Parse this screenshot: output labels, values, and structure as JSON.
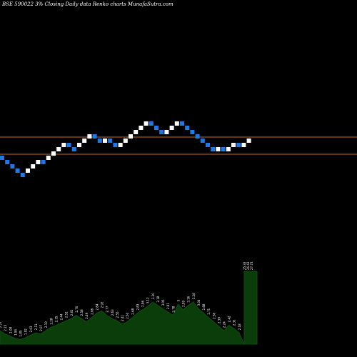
{
  "chart_data": {
    "type": "renko",
    "title": "BSE 590022  3% Closing Daily data  Renko  charts MunafaSutra.com",
    "colors": {
      "up_brick": "#ffffff",
      "down_brick": "#1e78e6",
      "reference_line": "#c06a28",
      "volume_fill": "#0a3d0a",
      "volume_line": "#0f4d0f",
      "background": "#000000"
    },
    "price_axis": {
      "min": 0,
      "max": 30
    },
    "reference_lines": [
      14.0,
      12.0
    ],
    "bricks": [
      {
        "dir": "down",
        "top": 12.5
      },
      {
        "dir": "down",
        "top": 12.0
      },
      {
        "dir": "down",
        "top": 11.5
      },
      {
        "dir": "down",
        "top": 11.0
      },
      {
        "dir": "down",
        "top": 10.5
      },
      {
        "dir": "up",
        "top": 11.0
      },
      {
        "dir": "up",
        "top": 11.5
      },
      {
        "dir": "up",
        "top": 12.0
      },
      {
        "dir": "down",
        "top": 12.0
      },
      {
        "dir": "up",
        "top": 12.5
      },
      {
        "dir": "up",
        "top": 13.0
      },
      {
        "dir": "up",
        "top": 13.5
      },
      {
        "dir": "up",
        "top": 14.0
      },
      {
        "dir": "down",
        "top": 14.0
      },
      {
        "dir": "down",
        "top": 13.5
      },
      {
        "dir": "up",
        "top": 14.0
      },
      {
        "dir": "up",
        "top": 14.5
      },
      {
        "dir": "up",
        "top": 15.0
      },
      {
        "dir": "down",
        "top": 15.0
      },
      {
        "dir": "down",
        "top": 14.5
      },
      {
        "dir": "up",
        "top": 14.5
      },
      {
        "dir": "down",
        "top": 14.5
      },
      {
        "dir": "down",
        "top": 14.0
      },
      {
        "dir": "up",
        "top": 14.0
      },
      {
        "dir": "up",
        "top": 14.5
      },
      {
        "dir": "up",
        "top": 15.0
      },
      {
        "dir": "up",
        "top": 15.5
      },
      {
        "dir": "up",
        "top": 16.0
      },
      {
        "dir": "up",
        "top": 16.5
      },
      {
        "dir": "down",
        "top": 16.5
      },
      {
        "dir": "down",
        "top": 16.0
      },
      {
        "dir": "down",
        "top": 15.5
      },
      {
        "dir": "up",
        "top": 15.5
      },
      {
        "dir": "up",
        "top": 16.0
      },
      {
        "dir": "up",
        "top": 16.5
      },
      {
        "dir": "down",
        "top": 16.5
      },
      {
        "dir": "down",
        "top": 16.0
      },
      {
        "dir": "down",
        "top": 15.5
      },
      {
        "dir": "down",
        "top": 15.0
      },
      {
        "dir": "down",
        "top": 14.5
      },
      {
        "dir": "down",
        "top": 14.0
      },
      {
        "dir": "down",
        "top": 13.5
      },
      {
        "dir": "up",
        "top": 13.5
      },
      {
        "dir": "down",
        "top": 13.5
      },
      {
        "dir": "up",
        "top": 13.5
      },
      {
        "dir": "up",
        "top": 14.0
      },
      {
        "dir": "down",
        "top": 14.0
      },
      {
        "dir": "up",
        "top": 14.0
      },
      {
        "dir": "up",
        "top": 14.5
      }
    ],
    "volume_labels": [
      {
        "text": "2.27",
        "level": 0.18
      },
      {
        "text": "2.15",
        "level": 0.12
      },
      {
        "text": "2.08",
        "level": 0.08
      },
      {
        "text": "1.94",
        "level": 0.04
      },
      {
        "text": "1.85",
        "level": 0.02
      },
      {
        "text": "1.92",
        "level": 0.05
      },
      {
        "text": "2.03",
        "level": 0.1
      },
      {
        "text": "2.11",
        "level": 0.14
      },
      {
        "text": "2.07",
        "level": 0.12
      },
      {
        "text": "2.19",
        "level": 0.18
      },
      {
        "text": "2.28",
        "level": 0.24
      },
      {
        "text": "2.35",
        "level": 0.28
      },
      {
        "text": "2.44",
        "level": 0.32
      },
      {
        "text": "2.52",
        "level": 0.36
      },
      {
        "text": "2.61",
        "level": 0.4
      },
      {
        "text": "2.70",
        "level": 0.46
      },
      {
        "text": "2.58",
        "level": 0.4
      },
      {
        "text": "2.49",
        "level": 0.34
      },
      {
        "text": "2.66",
        "level": 0.42
      },
      {
        "text": "2.84",
        "level": 0.5
      },
      {
        "text": "2.92",
        "level": 0.54
      },
      {
        "text": "2.77",
        "level": 0.46
      },
      {
        "text": "2.63",
        "level": 0.4
      },
      {
        "text": "2.55",
        "level": 0.36
      },
      {
        "text": "2.41",
        "level": 0.3
      },
      {
        "text": "2.50",
        "level": 0.34
      },
      {
        "text": "2.68",
        "level": 0.42
      },
      {
        "text": "2.83",
        "level": 0.5
      },
      {
        "text": "2.96",
        "level": 0.56
      },
      {
        "text": "3.12",
        "level": 0.62
      },
      {
        "text": "3.30",
        "level": 0.7
      },
      {
        "text": "3.18",
        "level": 0.64
      },
      {
        "text": "3.05",
        "level": 0.58
      },
      {
        "text": "2.91",
        "level": 0.52
      },
      {
        "text": "2.78",
        "level": 0.46
      },
      {
        "text": "5",
        "level": 0.66
      },
      {
        "text": "2.99",
        "level": 0.56
      },
      {
        "text": "3.16",
        "level": 0.64
      },
      {
        "text": "3.28",
        "level": 0.7
      },
      {
        "text": "3.04",
        "level": 0.58
      },
      {
        "text": "2.88",
        "level": 0.5
      },
      {
        "text": "2.71",
        "level": 0.42
      },
      {
        "text": "2.56",
        "level": 0.34
      },
      {
        "text": "2.39",
        "level": 0.26
      },
      {
        "text": "2.24",
        "level": 0.18
      },
      {
        "text": "2.42",
        "level": 0.28
      },
      {
        "text": "2.31",
        "level": 0.22
      },
      {
        "text": "2.18",
        "level": 0.14
      },
      {
        "text": "25.33",
        "level": 1.0
      },
      {
        "text": "26.43",
        "level": 1.0
      },
      {
        "text": "27.73",
        "level": 1.0
      }
    ]
  }
}
